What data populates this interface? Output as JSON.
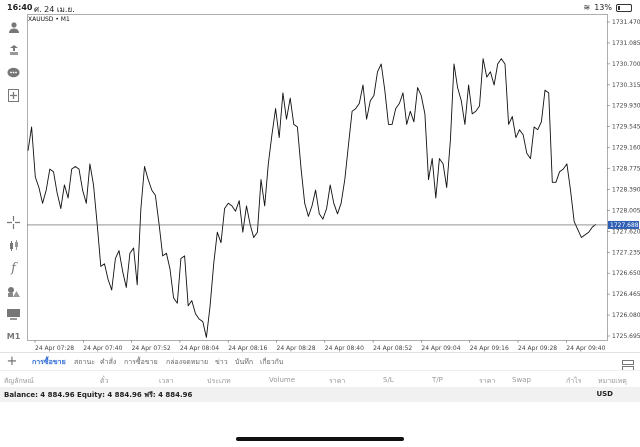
{
  "status_bar": {
    "time": "16:40",
    "date": "ศ. 24 เม.ย.",
    "battery": "13%",
    "battery_level": 0.13
  },
  "chart": {
    "title": "XAUUSD • M1",
    "current_price": "1727.688",
    "current_line_color": "#555555",
    "price_tag_color": "#2f5fb5"
  },
  "chart_data": {
    "type": "line",
    "ylim": [
      1725.5,
      1731.7
    ],
    "y_ticks": [
      "1731.470",
      "1731.085",
      "1730.700",
      "1730.315",
      "1729.930",
      "1729.545",
      "1729.160",
      "1728.775",
      "1728.390",
      "1728.005",
      "1727.620",
      "1727.235",
      "1726.650",
      "1726.465",
      "1726.080",
      "1725.695"
    ],
    "x_ticks": [
      "24 Apr 07:28",
      "24 Apr 07:40",
      "24 Apr 07:52",
      "24 Apr 08:04",
      "24 Apr 08:16",
      "24 Apr 08:28",
      "24 Apr 08:40",
      "24 Apr 08:52",
      "24 Apr 09:04",
      "24 Apr 09:16",
      "24 Apr 09:28",
      "24 Apr 09:40"
    ],
    "series": [
      {
        "values": [
          1729.1,
          1729.55,
          1728.6,
          1728.4,
          1728.1,
          1728.35,
          1728.75,
          1728.7,
          1728.3,
          1728.0,
          1728.45,
          1728.2,
          1728.75,
          1728.8,
          1728.75,
          1728.35,
          1728.1,
          1728.85,
          1728.45,
          1727.7,
          1726.9,
          1726.95,
          1726.65,
          1726.45,
          1727.05,
          1727.2,
          1726.8,
          1726.5,
          1727.15,
          1727.25,
          1726.55,
          1728.0,
          1728.8,
          1728.55,
          1728.35,
          1728.25,
          1727.7,
          1727.1,
          1727.15,
          1726.85,
          1726.3,
          1726.2,
          1727.05,
          1727.1,
          1726.15,
          1726.25,
          1726.0,
          1725.9,
          1725.85,
          1725.55,
          1726.15,
          1726.95,
          1727.55,
          1727.35,
          1728.0,
          1728.1,
          1728.05,
          1727.95,
          1728.15,
          1727.55,
          1728.05,
          1727.7,
          1727.45,
          1727.55,
          1728.55,
          1728.05,
          1728.85,
          1729.4,
          1729.9,
          1729.35,
          1730.2,
          1729.7,
          1730.1,
          1729.6,
          1729.55,
          1728.75,
          1728.1,
          1727.85,
          1728.05,
          1728.35,
          1727.9,
          1727.8,
          1728.0,
          1728.45,
          1728.1,
          1727.9,
          1728.1,
          1728.55,
          1729.2,
          1729.85,
          1729.9,
          1730.0,
          1730.35,
          1729.7,
          1730.05,
          1730.15,
          1730.6,
          1730.75,
          1730.25,
          1729.6,
          1729.6,
          1729.9,
          1730.0,
          1730.2,
          1729.6,
          1729.85,
          1729.65,
          1730.3,
          1730.15,
          1729.8,
          1728.55,
          1728.95,
          1728.2,
          1728.95,
          1728.85,
          1728.4,
          1729.3,
          1730.75,
          1730.3,
          1730.05,
          1729.6,
          1730.35,
          1729.8,
          1729.85,
          1729.95,
          1730.85,
          1730.5,
          1730.6,
          1730.35,
          1730.75,
          1730.85,
          1730.75,
          1729.6,
          1729.75,
          1729.35,
          1729.5,
          1729.4,
          1729.05,
          1728.95,
          1729.55,
          1729.5,
          1729.65,
          1730.25,
          1730.2,
          1728.5,
          1728.5,
          1728.7,
          1728.75,
          1728.85,
          1728.35,
          1727.75,
          1727.6,
          1727.45,
          1727.5,
          1727.55,
          1727.65,
          1727.7
        ]
      }
    ]
  },
  "tabs": [
    "การซื้อขาย",
    "สถานะ",
    "คำสั่ง",
    "การซื้อขาย",
    "กล่องจดหมาย",
    "ข่าว",
    "บันทึก",
    "เกี่ยวกับ"
  ],
  "columns": [
    "สัญลักษณ์",
    "ตั๋ว",
    "เวลา",
    "ประเภท",
    "Volume",
    "ราคา",
    "S/L",
    "T/P",
    "ราคา",
    "Swap",
    "กำไร",
    "หมายเหตุ"
  ],
  "account": {
    "balance_text": "Balance: 4 884.96 Equity: 4 884.96 ฟรี: 4 884.96",
    "currency": "USD"
  },
  "toolbar_icons": [
    "person-icon",
    "trade-icon",
    "chat-icon",
    "add-icon",
    "crosshair-icon",
    "candles-icon",
    "function-icon",
    "objects-icon",
    "layout-icon",
    "timeframe-icon"
  ],
  "toolbar_timeframe": "M1"
}
